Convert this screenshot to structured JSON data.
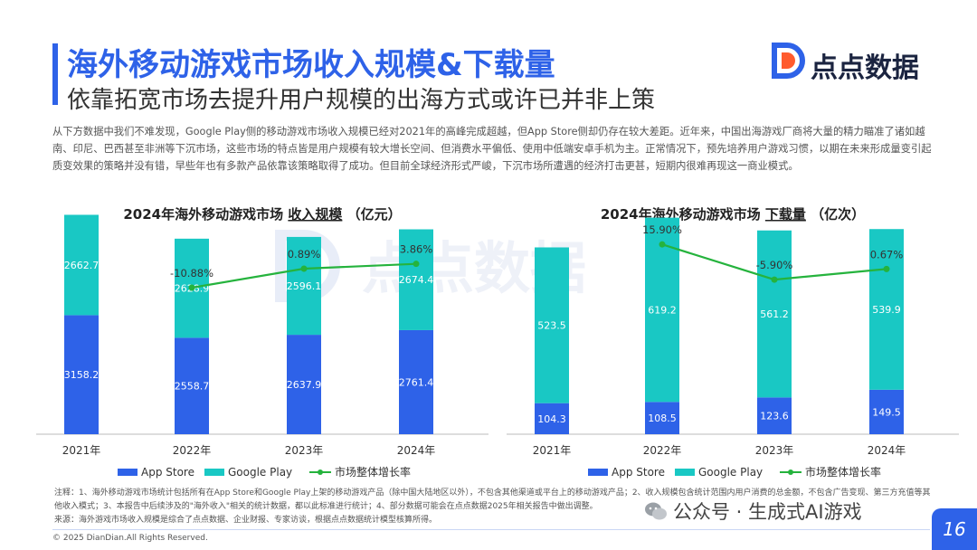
{
  "header": {
    "title": "海外移动游戏市场收入规模&下载量",
    "subtitle": "依靠拓宽市场去提升用户规模的出海方式或许已并非上策",
    "logo_text": "点点数据"
  },
  "intro": "从下方数据中我们不难发现，Google Play侧的移动游戏市场收入规模已经对2021年的高峰完成超越，但App Store侧却仍存在较大差距。近年来，中国出海游戏厂商将大量的精力瞄准了诸如越南、印尼、巴西甚至非洲等下沉市场，这些市场的特点皆是用户规模有较大增长空间、但消费水平偏低、使用中低端安卓手机为主。正常情况下，预先培养用户游戏习惯，以期在未来形成量变引起质变效果的策略并没有错，早些年也有多款产品依靠该策略取得了成功。但目前全球经济形式严峻，下沉市场所遭遇的经济打击更甚，短期内很难再现这一商业模式。",
  "watermark": "点点数据",
  "legend": {
    "app_store": "App Store",
    "google_play": "Google Play",
    "growth": "市场整体增长率"
  },
  "colors": {
    "app_store": "#2e62e8",
    "google_play": "#19c8c4",
    "growth": "#25b33d"
  },
  "chart_data": [
    {
      "type": "bar",
      "title_prefix": "2024年海外移动游戏市场 ",
      "title_key": "收入规模",
      "title_unit": " （亿元）",
      "categories": [
        "2021年",
        "2022年",
        "2023年",
        "2024年"
      ],
      "series": [
        {
          "name": "App Store",
          "values": [
            3158.2,
            2558.7,
            2637.9,
            2761.4
          ]
        },
        {
          "name": "Google Play",
          "values": [
            2662.7,
            2628.9,
            2596.1,
            2674.4
          ]
        }
      ],
      "growth": {
        "name": "市场整体增长率",
        "values": [
          null,
          -10.88,
          0.89,
          3.86
        ],
        "labels": [
          "",
          "-10.88%",
          "0.89%",
          "3.86%"
        ]
      },
      "ylim": [
        0,
        6000
      ]
    },
    {
      "type": "bar",
      "title_prefix": "2024年海外移动游戏市场 ",
      "title_key": "下载量",
      "title_unit": " （亿次）",
      "categories": [
        "2021年",
        "2022年",
        "2023年",
        "2024年"
      ],
      "series": [
        {
          "name": "App Store",
          "values": [
            104.3,
            108.5,
            123.6,
            149.5
          ]
        },
        {
          "name": "Google Play",
          "values": [
            523.5,
            619.2,
            561.2,
            539.9
          ]
        }
      ],
      "growth": {
        "name": "市场整体增长率",
        "values": [
          null,
          15.9,
          -5.9,
          0.67
        ],
        "labels": [
          "",
          "15.90%",
          "-5.90%",
          "0.67%"
        ]
      },
      "ylim": [
        0,
        760
      ]
    }
  ],
  "notes": [
    "注释：1、海外移动游戏市场统计包括所有在App Store和Google Play上架的移动游戏产品（除中国大陆地区以外），不包含其他渠道或平台上的移动游戏产品；2、收入规模包含统计范围内用户消费的总金额，不包含广告变现、第三方充值等其他收入模式；3、本报告中后续涉及的\"海外收入\"相关的统计数据，都以此标准进行统计；4、部分数据可能会在点点数据2025年相关报告中做出调整。",
    "来源：海外游戏市场收入规模是综合了点点数据、企业财报、专家访谈，根据点点数据统计模型核算所得。"
  ],
  "copyright": "© 2025 DianDian.All Rights Reserved.",
  "wechat": "公众号 · 生成式AI游戏",
  "page_number": "16"
}
